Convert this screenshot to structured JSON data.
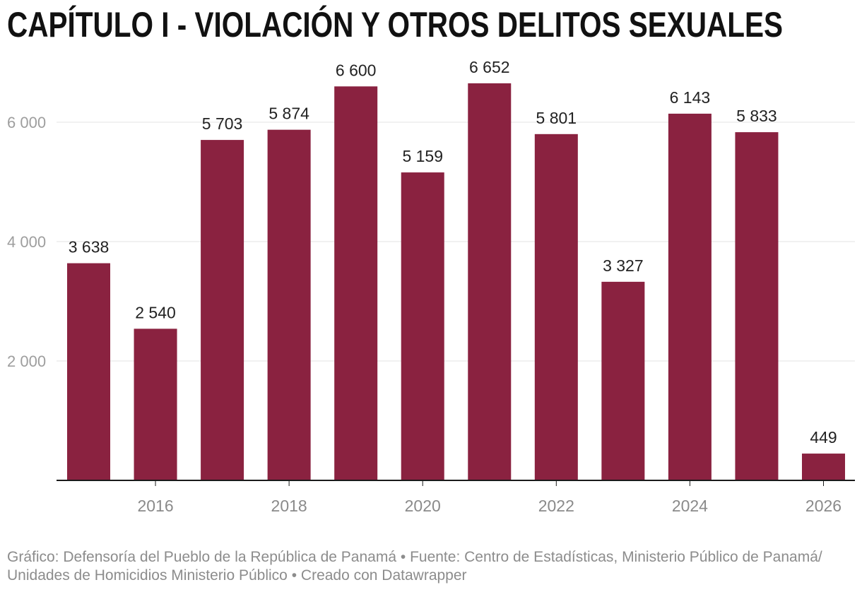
{
  "chart_data": {
    "type": "bar",
    "title": "CAPÍTULO I - VIOLACIÓN Y OTROS DELITOS SEXUALES",
    "xlabel": "",
    "ylabel": "",
    "x": [
      2015,
      2016,
      2017,
      2018,
      2019,
      2020,
      2021,
      2022,
      2023,
      2024,
      2025,
      2026
    ],
    "values": [
      3638,
      2540,
      5703,
      5874,
      6600,
      5159,
      6652,
      5801,
      3327,
      6143,
      5833,
      449
    ],
    "value_labels": [
      "3 638",
      "2 540",
      "5 703",
      "5 874",
      "6 600",
      "5 159",
      "6 652",
      "5 801",
      "3 327",
      "6 143",
      "5 833",
      "449"
    ],
    "x_ticks": [
      2016,
      2018,
      2020,
      2022,
      2024,
      2026
    ],
    "x_tick_labels": [
      "2016",
      "2018",
      "2020",
      "2022",
      "2024",
      "2026"
    ],
    "y_ticks": [
      2000,
      4000,
      6000
    ],
    "y_tick_labels": [
      "2 000",
      "4 000",
      "6 000"
    ],
    "ylim": [
      0,
      7000
    ],
    "grid": true,
    "colors": {
      "bar": "#8a2240",
      "gridline": "#e3e3e3",
      "axis": "#1a1a1a",
      "value_label": "#222222",
      "tick_label": "#8a8a8a",
      "y_tick_label": "#9e9e9e"
    }
  },
  "footer": {
    "byline": "Gráfico: Defensoría del Pueblo de la República de Panamá",
    "separator": "•",
    "source_label": "Fuente:",
    "source_line1": "Centro de Estadísticas, Ministerio Público de Panamá/",
    "source_line2": "Unidades de Homicidios Ministerio Público",
    "credit": "Creado con Datawrapper"
  }
}
